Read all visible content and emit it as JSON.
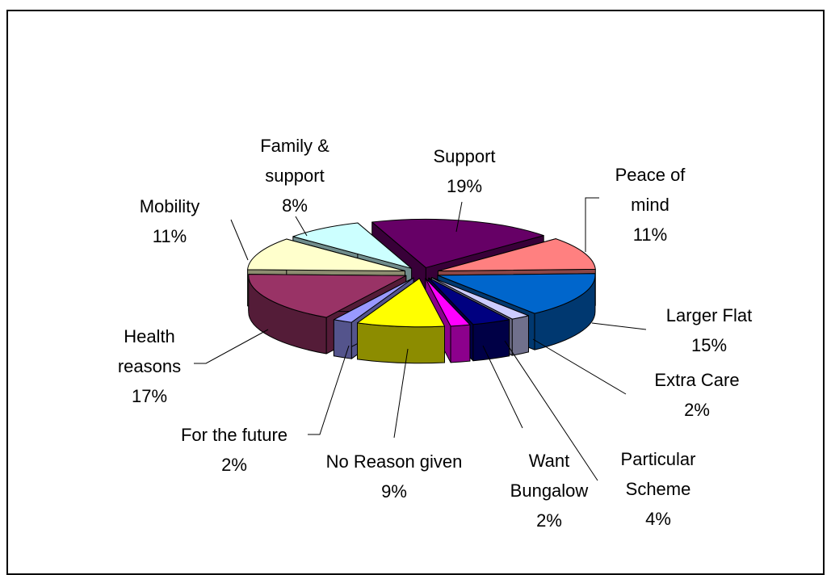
{
  "chart_data": {
    "type": "pie3d",
    "categories": [
      "Support",
      "Peace of mind",
      "Larger Flat",
      "Extra Care",
      "Particular Scheme",
      "Want Bungalow",
      "No Reason given",
      "For the future",
      "Health reasons",
      "Mobility",
      "Family & support"
    ],
    "values": [
      19,
      11,
      15,
      2,
      4,
      2,
      9,
      2,
      17,
      11,
      8
    ],
    "value_labels": [
      "19%",
      "11%",
      "15%",
      "2%",
      "4%",
      "2%",
      "9%",
      "2%",
      "17%",
      "11%",
      "8%"
    ],
    "colors": [
      "#660066",
      "#ff8080",
      "#0066cc",
      "#ccccff",
      "#000080",
      "#ff00ff",
      "#ffff00",
      "#9999ff",
      "#993366",
      "#ffffcc",
      "#ccffff"
    ]
  }
}
